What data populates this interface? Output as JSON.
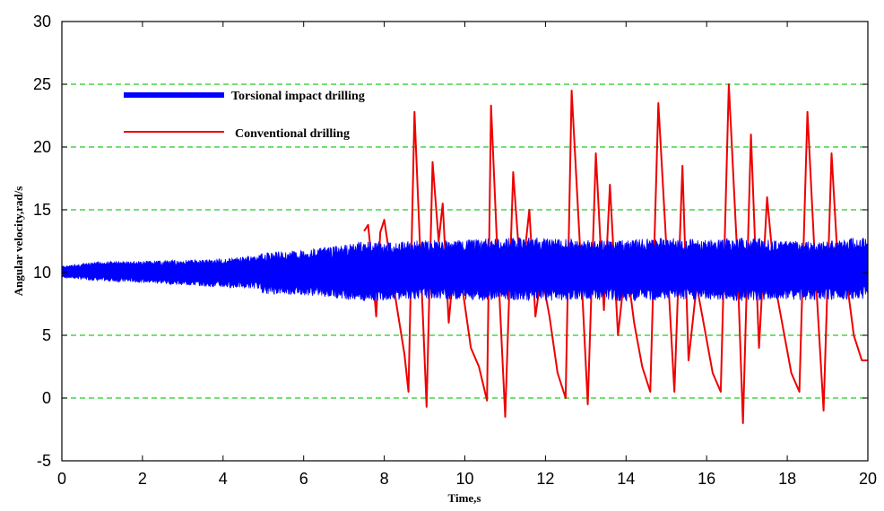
{
  "chart_data": {
    "type": "line",
    "xlabel": "Time,s",
    "ylabel": "Angular velocity,rad/s",
    "xlim": [
      0,
      20
    ],
    "ylim": [
      -5,
      30
    ],
    "xticks": [
      0,
      2,
      4,
      6,
      8,
      10,
      12,
      14,
      16,
      18,
      20
    ],
    "yticks": [
      -5,
      0,
      5,
      10,
      15,
      20,
      25,
      30
    ],
    "grid": "horizontal dashed, y = 0 to 25",
    "legend": "upper-left",
    "colors": {
      "grid": "#22cc22",
      "torsional": "#0000ff",
      "conventional": "#ee0000"
    },
    "series": [
      {
        "name": "Torsional impact drilling",
        "color": "#0000ff",
        "style": "band",
        "x": [
          0,
          1,
          2,
          3,
          4,
          4.9,
          5,
          6,
          7,
          7.5,
          8,
          9,
          10,
          11,
          12,
          13,
          14,
          15,
          16,
          17,
          18,
          19,
          20
        ],
        "upper": [
          10.5,
          10.9,
          10.9,
          11.0,
          11.1,
          11.4,
          11.6,
          11.8,
          12.2,
          12.6,
          12.4,
          12.6,
          12.6,
          12.8,
          12.8,
          12.6,
          12.6,
          12.8,
          12.6,
          12.8,
          12.5,
          12.5,
          12.9
        ],
        "lower": [
          9.6,
          9.3,
          9.2,
          9.0,
          8.8,
          8.7,
          8.3,
          8.2,
          7.9,
          7.6,
          7.8,
          7.9,
          7.8,
          7.8,
          7.7,
          7.8,
          7.7,
          7.8,
          7.8,
          7.7,
          7.8,
          7.8,
          7.9
        ]
      },
      {
        "name": "Conventional drilling",
        "color": "#ee0000",
        "x": [
          7.5,
          7.6,
          7.7,
          7.8,
          7.9,
          8.0,
          8.1,
          8.3,
          8.5,
          8.6,
          8.75,
          8.9,
          9.05,
          9.2,
          9.35,
          9.45,
          9.6,
          9.75,
          9.95,
          10.15,
          10.35,
          10.55,
          10.65,
          10.8,
          11.0,
          11.2,
          11.4,
          11.6,
          11.75,
          11.9,
          12.1,
          12.3,
          12.5,
          12.65,
          12.85,
          13.05,
          13.25,
          13.45,
          13.6,
          13.8,
          14.0,
          14.2,
          14.4,
          14.6,
          14.8,
          15.0,
          15.2,
          15.4,
          15.55,
          15.75,
          15.95,
          16.15,
          16.35,
          16.55,
          16.75,
          16.9,
          17.1,
          17.3,
          17.5,
          17.7,
          17.9,
          18.1,
          18.3,
          18.5,
          18.7,
          18.9,
          19.1,
          19.25,
          19.45,
          19.65,
          19.85,
          20.0
        ],
        "y": [
          13.3,
          13.8,
          10.5,
          6.5,
          13.2,
          14.2,
          12.0,
          7.5,
          3.5,
          0.5,
          22.8,
          11.0,
          -0.7,
          18.8,
          12.5,
          15.5,
          6.0,
          11.5,
          8.5,
          4.0,
          2.5,
          -0.2,
          23.3,
          12.0,
          -1.5,
          18.0,
          9.0,
          15.0,
          6.5,
          10.0,
          6.5,
          2.0,
          0.0,
          24.5,
          12.5,
          -0.5,
          19.5,
          7.0,
          17.0,
          5.0,
          11.0,
          6.0,
          2.5,
          0.5,
          23.5,
          12.0,
          0.5,
          18.5,
          3.0,
          9.0,
          5.5,
          2.0,
          0.5,
          25.0,
          12.0,
          -2.0,
          21.0,
          4.0,
          16.0,
          9.0,
          5.5,
          2.0,
          0.5,
          22.8,
          10.0,
          -1.0,
          19.5,
          11.0,
          10.0,
          5.0,
          3.0,
          3.0
        ]
      }
    ]
  }
}
